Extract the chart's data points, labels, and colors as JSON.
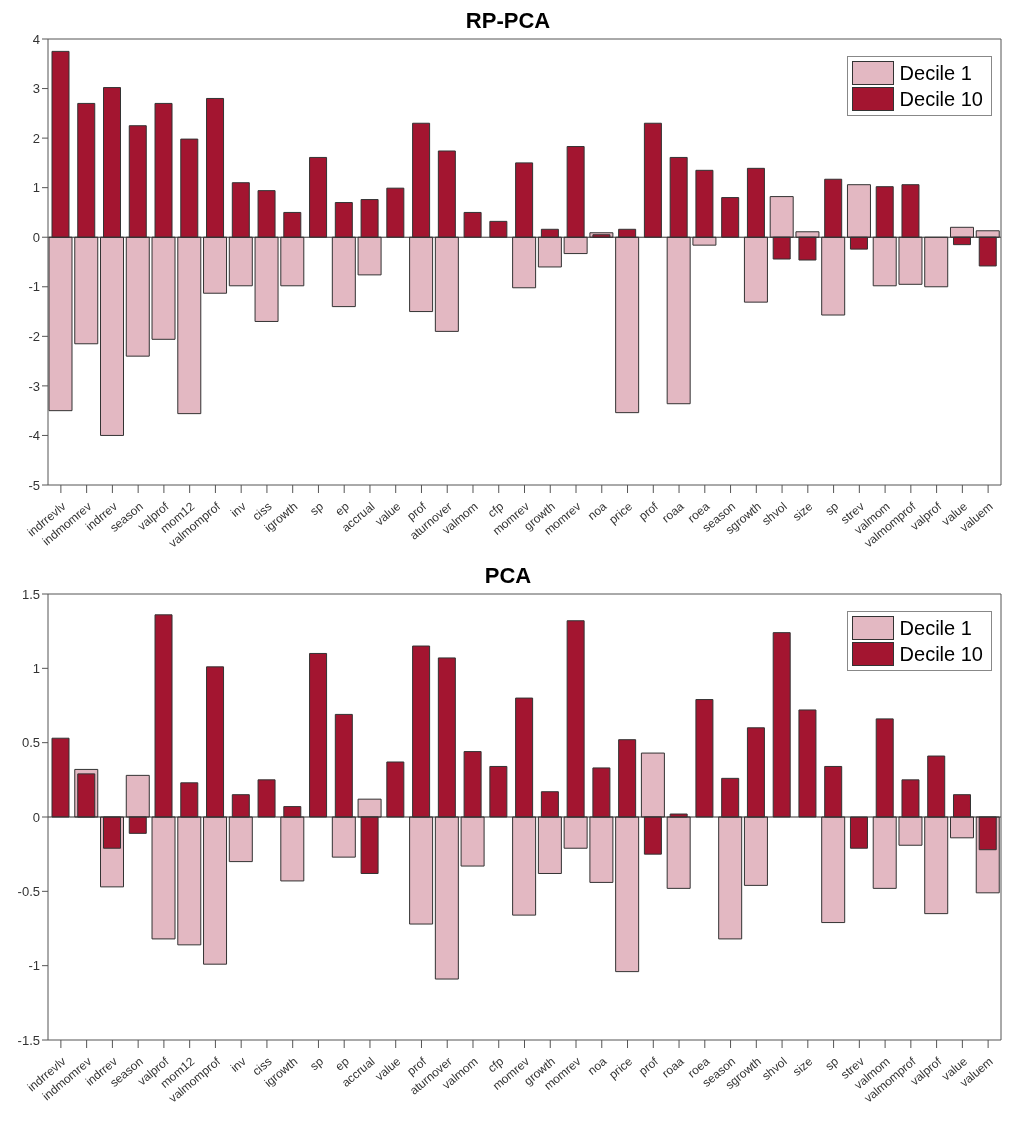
{
  "chart_data": [
    {
      "type": "bar",
      "title": "RP-PCA",
      "categories": [
        "indrrevlv",
        "indmomrev",
        "indrrev",
        "season",
        "valprof",
        "mom12",
        "valmomprof",
        "inv",
        "ciss",
        "igrowth",
        "sp",
        "ep",
        "accrual",
        "value",
        "prof",
        "aturnover",
        "valmom",
        "cfp",
        "momrev",
        "growth",
        "momrev",
        "noa",
        "price",
        "prof",
        "roaa",
        "roea",
        "season",
        "sgrowth",
        "shvol",
        "size",
        "sp",
        "strev",
        "valmom",
        "valmomprof",
        "valprof",
        "value",
        "valuem"
      ],
      "series": [
        {
          "name": "Decile 1",
          "color": "#e3b8c2",
          "values": [
            -3.5,
            -2.15,
            -4.0,
            -2.4,
            -2.06,
            -3.56,
            -1.13,
            -0.98,
            -1.7,
            -0.98,
            0,
            -1.4,
            -0.76,
            0,
            -1.5,
            -1.9,
            0,
            0,
            -1.02,
            -0.6,
            -0.33,
            0.09,
            -3.54,
            0,
            -3.36,
            -0.16,
            0,
            -1.31,
            0.82,
            0.11,
            -1.57,
            1.06,
            -0.98,
            -0.95,
            -1.0,
            0.2,
            0.13
          ]
        },
        {
          "name": "Decile 10",
          "color": "#a31530",
          "values": [
            3.75,
            2.7,
            3.02,
            2.25,
            2.7,
            1.98,
            2.8,
            1.1,
            0.94,
            0.5,
            1.61,
            0.7,
            0.76,
            0.99,
            2.3,
            1.74,
            0.5,
            0.32,
            1.5,
            0.16,
            1.83,
            0.05,
            0.16,
            2.3,
            1.61,
            1.35,
            0.8,
            1.39,
            -0.44,
            -0.46,
            1.17,
            -0.24,
            1.02,
            1.06,
            0,
            -0.15,
            -0.58
          ]
        }
      ],
      "ylim": [
        -5,
        4
      ],
      "yticks": [
        -5,
        -4,
        -3,
        -2,
        -1,
        0,
        1,
        2,
        3,
        4
      ],
      "legend": "top right"
    },
    {
      "type": "bar",
      "title": "PCA",
      "categories": [
        "indrrevlv",
        "indmomrev",
        "indrrev",
        "season",
        "valprof",
        "mom12",
        "valmomprof",
        "inv",
        "ciss",
        "igrowth",
        "sp",
        "ep",
        "accrual",
        "value",
        "prof",
        "aturnover",
        "valmom",
        "cfp",
        "momrev",
        "growth",
        "momrev",
        "noa",
        "price",
        "prof",
        "roaa",
        "roea",
        "season",
        "sgrowth",
        "shvol",
        "size",
        "sp",
        "strev",
        "valmom",
        "valmomprof",
        "valprof",
        "value",
        "valuem"
      ],
      "series": [
        {
          "name": "Decile 1",
          "color": "#e3b8c2",
          "values": [
            0,
            0.32,
            -0.47,
            0.28,
            -0.82,
            -0.86,
            -0.99,
            -0.3,
            0,
            -0.43,
            0,
            -0.27,
            0.12,
            0,
            -0.72,
            -1.09,
            -0.33,
            0,
            -0.66,
            -0.38,
            -0.21,
            -0.44,
            -1.04,
            0.43,
            -0.48,
            0,
            -0.82,
            -0.46,
            0,
            0,
            -0.71,
            0,
            -0.48,
            -0.19,
            -0.65,
            -0.14,
            -0.51
          ]
        },
        {
          "name": "Decile 10",
          "color": "#a31530",
          "values": [
            0.53,
            0.29,
            -0.21,
            -0.11,
            1.36,
            0.23,
            1.01,
            0.15,
            0.25,
            0.07,
            1.1,
            0.69,
            -0.38,
            0.37,
            1.15,
            1.07,
            0.44,
            0.34,
            0.8,
            0.17,
            1.32,
            0.33,
            0.52,
            -0.25,
            0.02,
            0.79,
            0.26,
            0.6,
            1.24,
            0.72,
            0.34,
            -0.21,
            0.66,
            0.25,
            0.41,
            0.15,
            -0.22
          ]
        }
      ],
      "ylim": [
        -1.5,
        1.5
      ],
      "yticks": [
        -1.5,
        -1,
        -0.5,
        0,
        0.5,
        1,
        1.5
      ],
      "legend": "top right"
    }
  ]
}
